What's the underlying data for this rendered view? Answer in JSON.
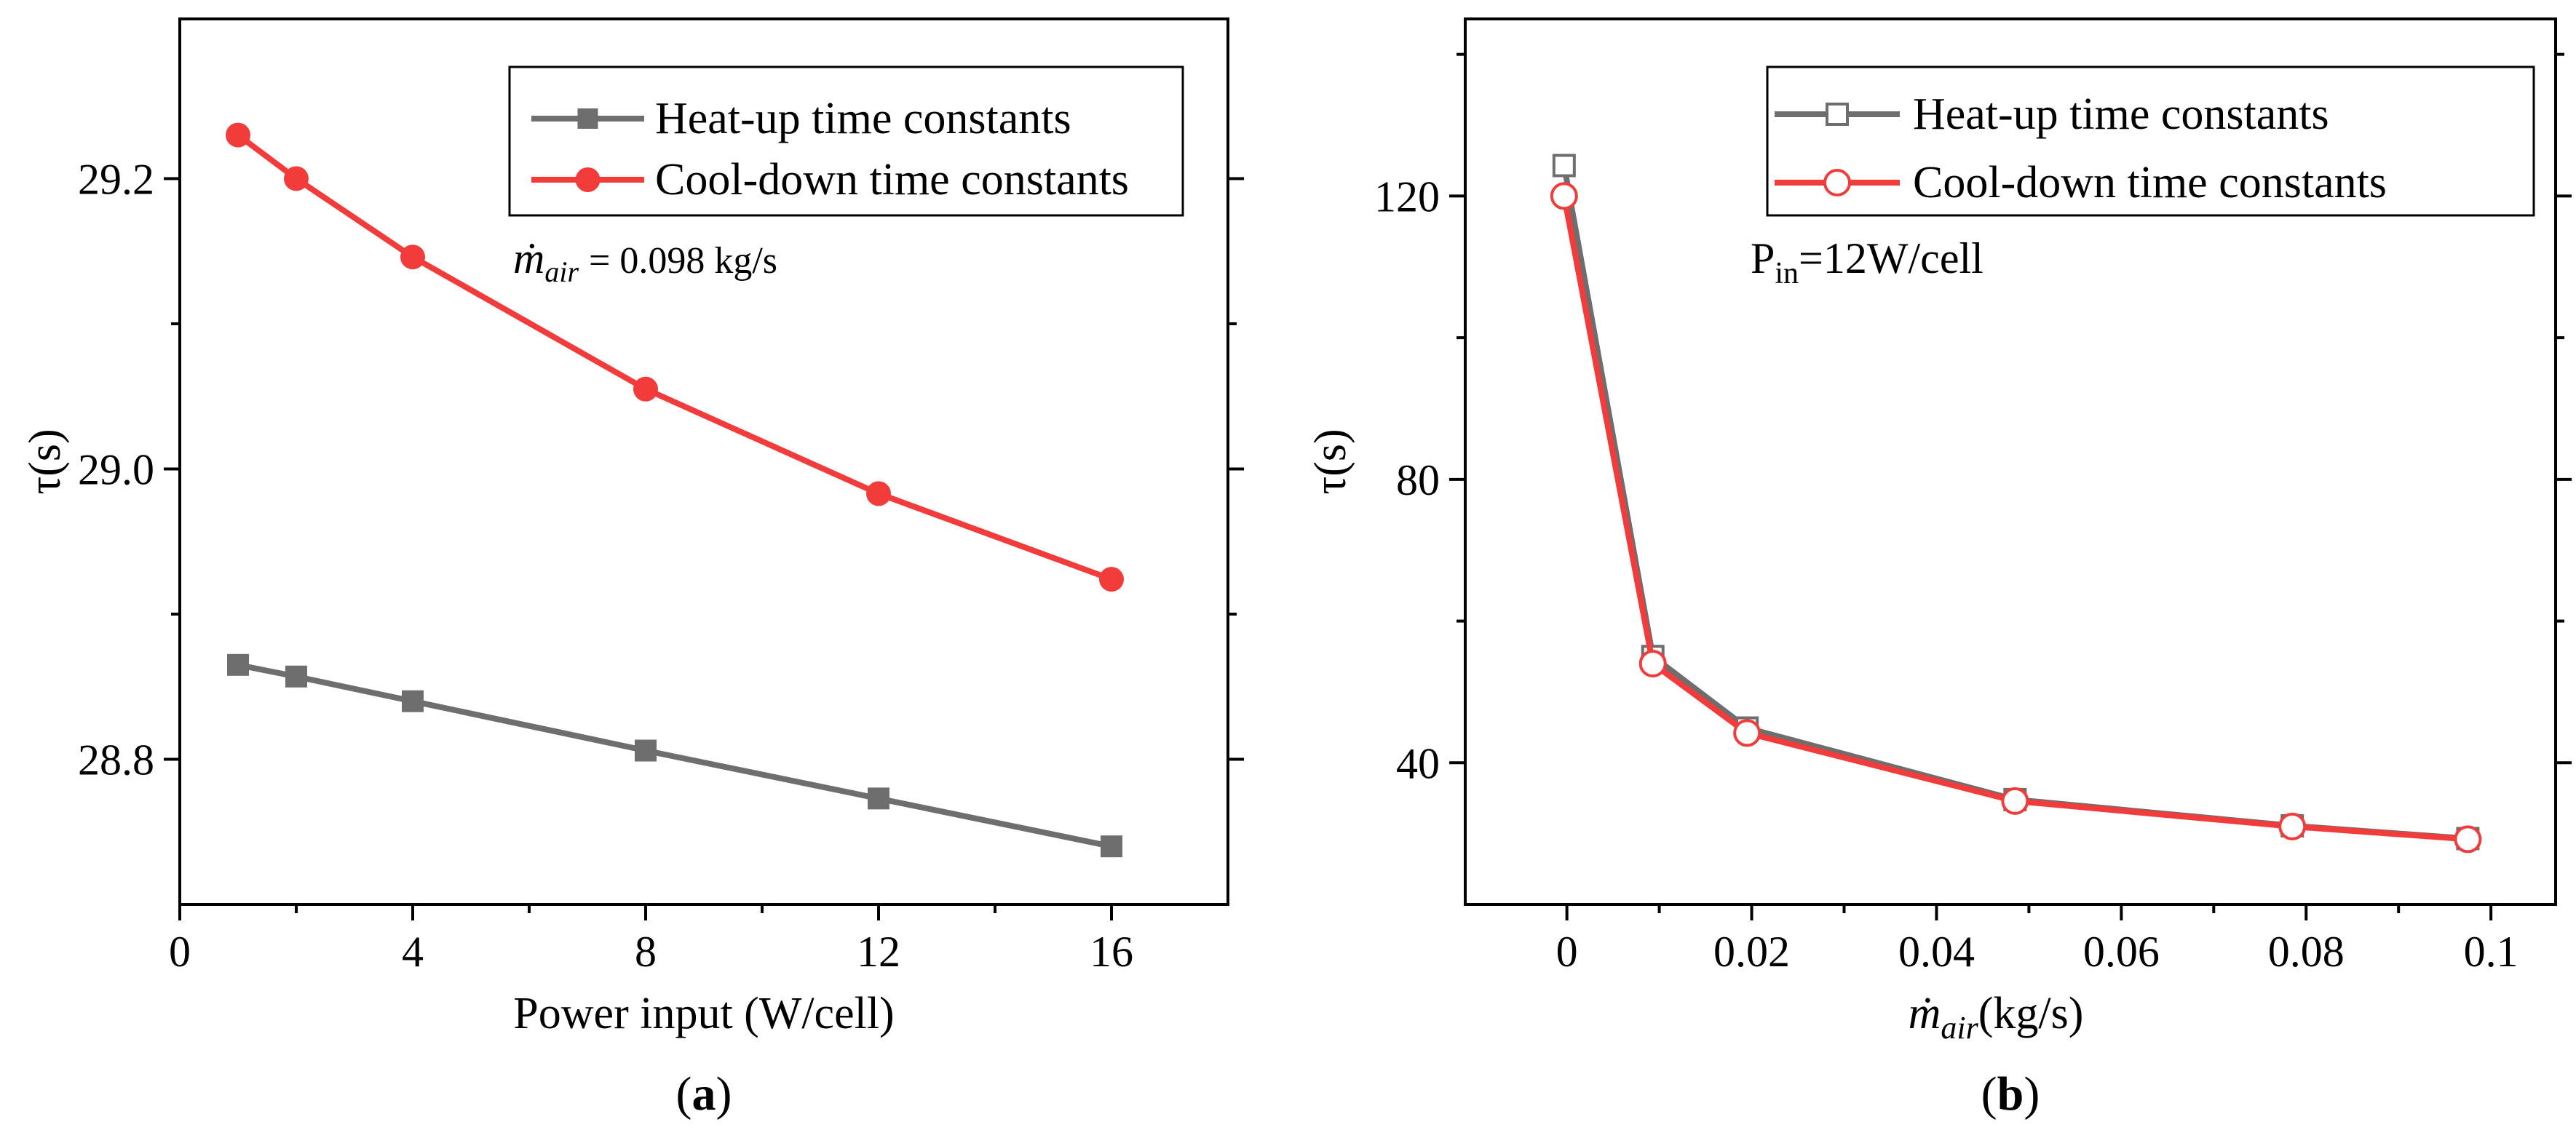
{
  "colors": {
    "heat": "#6e6e6e",
    "cool": "#f23c3c",
    "axis": "#000000"
  },
  "chart_data": [
    {
      "id": "a",
      "type": "line",
      "panel_label_open": "(",
      "panel_label": "a",
      "panel_label_close": ")",
      "title": "",
      "xlabel": "Power input (W/cell)",
      "ylabel": "τ(s)",
      "xlim": [
        0,
        18
      ],
      "ylim": [
        28.7,
        29.31
      ],
      "xticks": [
        0,
        4,
        8,
        12,
        16
      ],
      "xtick_labels": [
        "0",
        "4",
        "8",
        "12",
        "16"
      ],
      "xminor": [
        2,
        6,
        10,
        14
      ],
      "yticks": [
        28.8,
        29.0,
        29.2
      ],
      "ytick_labels": [
        "28.8",
        "29.0",
        "29.2"
      ],
      "yminor": [
        28.9,
        29.1
      ],
      "legend_position": "top-right",
      "marker_style": "filled",
      "annotation": {
        "m_symbol": "ṁ",
        "subscript": "air",
        "text": "= 0.098 kg/s"
      },
      "series": [
        {
          "name": "Heat-up time constants",
          "color_key": "heat",
          "marker": "square",
          "x": [
            1,
            2,
            4,
            8,
            12,
            16
          ],
          "values": [
            28.865,
            28.857,
            28.84,
            28.806,
            28.773,
            28.74
          ]
        },
        {
          "name": "Cool-down time constants",
          "color_key": "cool",
          "marker": "circle",
          "x": [
            1,
            2,
            4,
            8,
            12,
            16
          ],
          "values": [
            29.23,
            29.2,
            29.146,
            29.055,
            28.983,
            28.924
          ]
        }
      ]
    },
    {
      "id": "b",
      "type": "line",
      "panel_label_open": "(",
      "panel_label": "b",
      "panel_label_close": ")",
      "title": "",
      "xlabel_m": "ṁ",
      "xlabel_sub": "air",
      "xlabel_rest": "(kg/s)",
      "ylabel": "τ(s)",
      "xlim": [
        -0.011,
        0.107
      ],
      "ylim": [
        20,
        145
      ],
      "xticks": [
        0,
        0.02,
        0.04,
        0.06,
        0.08,
        0.1
      ],
      "xtick_labels": [
        "0",
        "0.02",
        "0.04",
        "0.06",
        "0.08",
        "0.1"
      ],
      "xminor": [
        0.01,
        0.03,
        0.05,
        0.07,
        0.09
      ],
      "yticks": [
        40,
        80,
        120
      ],
      "ytick_labels": [
        "40",
        "80",
        "120"
      ],
      "yminor": [
        60,
        100,
        140
      ],
      "legend_position": "top-right",
      "marker_style": "open",
      "annotation": {
        "p_symbol": "P",
        "subscript": "in",
        "text": "=12W/cell"
      },
      "series": [
        {
          "name": "Heat-up time constants",
          "color_key": "heat",
          "marker": "square",
          "x": [
            -0.0003,
            0.0093,
            0.0195,
            0.0485,
            0.0785,
            0.0975
          ],
          "values": [
            124.3,
            55,
            44.9,
            34.8,
            31.1,
            29.3
          ]
        },
        {
          "name": "Cool-down time constants",
          "color_key": "cool",
          "marker": "circle",
          "x": [
            -0.0003,
            0.0093,
            0.0195,
            0.0485,
            0.0785,
            0.0975
          ],
          "values": [
            120,
            54,
            44.2,
            34.6,
            31,
            29.2
          ]
        }
      ]
    }
  ]
}
